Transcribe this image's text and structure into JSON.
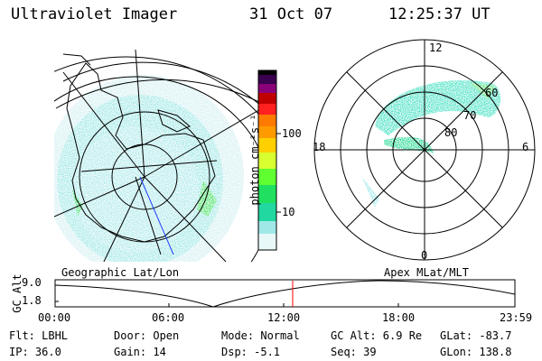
{
  "header": {
    "instrument": "Ultraviolet Imager",
    "date": "31 Oct 07",
    "time": "12:25:37 UT"
  },
  "colorbar": {
    "unit_label": "photon cm⁻²s⁻¹",
    "ticks": [
      "100",
      "10"
    ],
    "colors": [
      "#000000",
      "#3a0050",
      "#8a0078",
      "#c00000",
      "#ff2020",
      "#ff7a00",
      "#ffd000",
      "#d8ff30",
      "#60ff30",
      "#20d8a0",
      "#a0e8e8",
      "#e8f8f8"
    ]
  },
  "polar_plot": {
    "mlt_labels": [
      "12",
      "18",
      "6",
      "0"
    ],
    "lat_labels": [
      "60",
      "70",
      "80"
    ]
  },
  "map_titles": {
    "left": "Geographic Lat/Lon",
    "right": "Apex MLat/MLT"
  },
  "altitude_plot": {
    "ylabel": "GC Alt",
    "y_ticks": [
      "9.0",
      "1.8"
    ],
    "x_ticks": [
      "00:00",
      "06:00",
      "12:00",
      "18:00",
      "23:59"
    ],
    "current_time_marker_color": "#ff0000"
  },
  "info": {
    "flt": "Flt: LBHL",
    "door": "Door: Open",
    "mode": "Mode: Normal",
    "gc_alt": "GC Alt: 6.9 Re",
    "glat": "GLat: -83.7",
    "ip": "IP: 36.0",
    "gain": "Gain: 14",
    "dsp": "Dsp:   -5.1",
    "seq": "Seq: 39",
    "glon": "GLon: 138.8"
  }
}
